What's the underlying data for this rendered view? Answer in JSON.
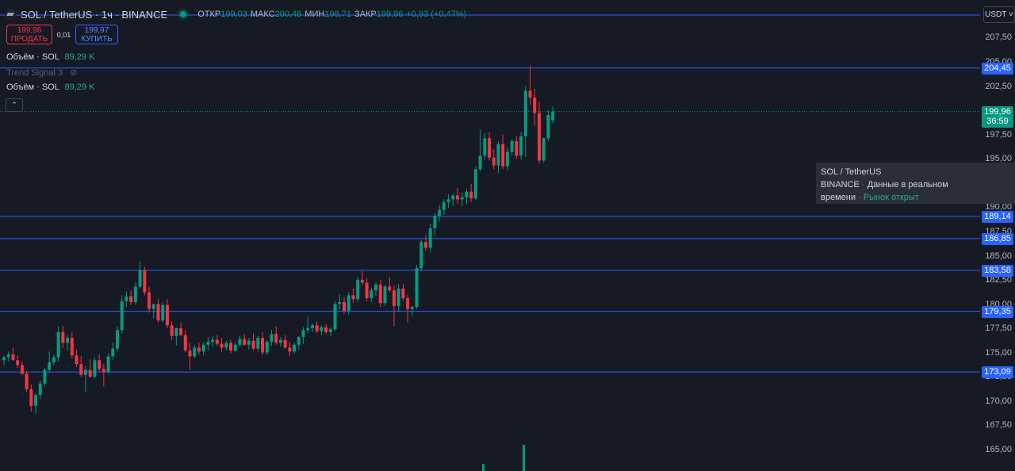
{
  "header": {
    "symbol": "SOL / TetherUS · 1ч · BINANCE",
    "open_label": "ОТКР",
    "open": "199,03",
    "high_label": "МАКС",
    "high": "200,48",
    "low_label": "МИН",
    "low": "198,71",
    "close_label": "ЗАКР",
    "close": "199,96",
    "change": "+0,93 (+0,47%)"
  },
  "trade": {
    "sell_price": "199,96",
    "sell_label": "ПРОДАТЬ",
    "spread": "0,01",
    "buy_price": "199,97",
    "buy_label": "КУПИТЬ"
  },
  "indicators": {
    "volume1_name": "Объём · SOL",
    "volume1_value": "89,29 K",
    "trend_name": "Trend Signal 3",
    "volume2_name": "Объём · SOL",
    "volume2_value": "89,29 K"
  },
  "currency": "USDT ˅",
  "price_ticks": [
    "207,50",
    "205,00",
    "202,50",
    "197,50",
    "195,00",
    "190,00",
    "187,50",
    "185,00",
    "182,50",
    "180,00",
    "177,50",
    "175,00",
    "172,50",
    "170,00",
    "167,50",
    "165,00"
  ],
  "price_ticks_values": [
    207.5,
    205,
    202.5,
    197.5,
    195,
    190,
    187.5,
    185,
    182.5,
    180,
    177.5,
    175,
    172.5,
    170,
    167.5,
    165
  ],
  "horizontal_lines": [
    {
      "label": "204,45",
      "value": 204.45
    },
    {
      "label": "189,14",
      "value": 189.14
    },
    {
      "label": "186,85",
      "value": 186.85
    },
    {
      "label": "183,58",
      "value": 183.58
    },
    {
      "label": "179,35",
      "value": 179.35
    },
    {
      "label": "173,09",
      "value": 173.09
    }
  ],
  "current_price": {
    "label": "199,96",
    "countdown": "36:59",
    "value": 199.96
  },
  "tooltip": {
    "title": "SOL / TetherUS",
    "exchange": "BINANCE",
    "desc": "Данные в реальном",
    "desc2": "времени",
    "market": "Рынок открыт"
  },
  "colors": {
    "up": "#089981",
    "down": "#f23645",
    "line": "#2962ff",
    "bg": "#161a25"
  },
  "chart_data": {
    "type": "candlestick",
    "ylim": [
      164,
      209
    ],
    "candles": [
      [
        174.3,
        174.8,
        173.8,
        174.6
      ],
      [
        174.6,
        175.2,
        174.2,
        174.9
      ],
      [
        174.9,
        175.6,
        174.4,
        174.3
      ],
      [
        174.3,
        174.8,
        173.5,
        173.8
      ],
      [
        173.8,
        174.2,
        172.8,
        172.9
      ],
      [
        172.9,
        173.2,
        171.0,
        171.3
      ],
      [
        171.3,
        171.8,
        169.0,
        169.6
      ],
      [
        169.6,
        170.9,
        168.8,
        170.7
      ],
      [
        170.7,
        172.2,
        170.3,
        171.9
      ],
      [
        171.9,
        173.5,
        171.6,
        173.3
      ],
      [
        173.3,
        175.2,
        173.0,
        174.1
      ],
      [
        174.1,
        174.9,
        173.8,
        174.6
      ],
      [
        174.6,
        177.8,
        174.2,
        177.2
      ],
      [
        177.2,
        177.8,
        175.6,
        176.1
      ],
      [
        176.1,
        176.9,
        175.3,
        176.6
      ],
      [
        176.6,
        177.2,
        174.5,
        174.8
      ],
      [
        174.8,
        175.4,
        173.6,
        173.9
      ],
      [
        173.9,
        174.7,
        172.6,
        172.8
      ],
      [
        172.8,
        173.7,
        171.0,
        173.3
      ],
      [
        173.3,
        174.4,
        172.5,
        172.6
      ],
      [
        172.6,
        174.6,
        172.4,
        174.3
      ],
      [
        174.3,
        174.9,
        173.1,
        173.4
      ],
      [
        173.4,
        173.9,
        171.6,
        173.1
      ],
      [
        173.1,
        175.0,
        172.9,
        174.7
      ],
      [
        174.7,
        176.1,
        174.3,
        175.5
      ],
      [
        175.5,
        177.8,
        175.2,
        177.4
      ],
      [
        177.4,
        181.0,
        177.1,
        180.4
      ],
      [
        180.4,
        181.4,
        179.8,
        180.9
      ],
      [
        180.9,
        181.5,
        180.0,
        180.3
      ],
      [
        180.3,
        182.3,
        180.0,
        181.9
      ],
      [
        181.9,
        184.5,
        181.7,
        183.6
      ],
      [
        183.6,
        183.9,
        181.0,
        181.3
      ],
      [
        181.3,
        181.9,
        179.2,
        179.6
      ],
      [
        179.6,
        180.1,
        178.6,
        180.1
      ],
      [
        180.1,
        180.6,
        178.2,
        178.4
      ],
      [
        178.4,
        180.3,
        178.2,
        180.0
      ],
      [
        180.0,
        180.6,
        177.6,
        177.9
      ],
      [
        177.9,
        178.3,
        176.4,
        176.8
      ],
      [
        176.8,
        177.7,
        175.8,
        177.6
      ],
      [
        177.6,
        178.2,
        176.8,
        176.9
      ],
      [
        176.9,
        177.4,
        175.1,
        175.3
      ],
      [
        175.3,
        176.1,
        173.3,
        174.7
      ],
      [
        174.7,
        175.9,
        174.5,
        175.6
      ],
      [
        175.6,
        176.1,
        174.9,
        175.2
      ],
      [
        175.2,
        176.2,
        174.8,
        175.9
      ],
      [
        175.9,
        176.7,
        175.3,
        176.2
      ],
      [
        176.2,
        176.8,
        175.7,
        176.4
      ],
      [
        176.4,
        176.9,
        175.8,
        176.0
      ],
      [
        176.0,
        176.6,
        175.2,
        175.6
      ],
      [
        175.6,
        176.3,
        175.3,
        176.1
      ],
      [
        176.1,
        176.4,
        175.0,
        175.3
      ],
      [
        175.3,
        176.2,
        175.1,
        175.9
      ],
      [
        175.9,
        176.8,
        175.7,
        176.5
      ],
      [
        176.5,
        177.0,
        175.8,
        175.9
      ],
      [
        175.9,
        176.6,
        175.4,
        176.3
      ],
      [
        176.3,
        177.1,
        175.3,
        175.5
      ],
      [
        175.5,
        176.8,
        175.2,
        176.6
      ],
      [
        176.6,
        177.2,
        174.8,
        175.1
      ],
      [
        175.1,
        176.4,
        174.8,
        176.2
      ],
      [
        176.2,
        177.4,
        175.8,
        177.0
      ],
      [
        177.0,
        177.8,
        175.9,
        176.1
      ],
      [
        176.1,
        176.7,
        175.7,
        176.4
      ],
      [
        176.4,
        176.9,
        175.5,
        175.6
      ],
      [
        175.6,
        176.2,
        174.7,
        175.2
      ],
      [
        175.2,
        176.1,
        174.9,
        175.9
      ],
      [
        175.9,
        176.8,
        175.4,
        176.7
      ],
      [
        176.7,
        177.7,
        176.0,
        177.4
      ],
      [
        177.4,
        178.8,
        177.1,
        177.6
      ],
      [
        177.6,
        178.1,
        177.2,
        177.9
      ],
      [
        177.9,
        178.3,
        177.1,
        177.3
      ],
      [
        177.3,
        177.9,
        176.9,
        177.7
      ],
      [
        177.7,
        178.0,
        177.0,
        177.2
      ],
      [
        177.2,
        177.7,
        176.8,
        177.5
      ],
      [
        177.5,
        180.4,
        177.3,
        180.1
      ],
      [
        180.1,
        181.1,
        179.5,
        180.3
      ],
      [
        180.3,
        180.8,
        179.1,
        179.4
      ],
      [
        179.4,
        181.3,
        179.0,
        181.0
      ],
      [
        181.0,
        181.7,
        180.2,
        180.6
      ],
      [
        180.6,
        182.9,
        180.3,
        182.6
      ],
      [
        182.6,
        183.5,
        182.0,
        182.3
      ],
      [
        182.3,
        182.8,
        180.4,
        180.7
      ],
      [
        180.7,
        181.8,
        180.3,
        181.5
      ],
      [
        181.5,
        182.4,
        180.9,
        182.1
      ],
      [
        182.1,
        182.6,
        179.8,
        180.2
      ],
      [
        180.2,
        182.1,
        179.9,
        181.9
      ],
      [
        181.9,
        182.9,
        181.3,
        181.5
      ],
      [
        181.5,
        182.0,
        177.8,
        179.9
      ],
      [
        179.9,
        182.2,
        179.3,
        181.7
      ],
      [
        181.7,
        182.2,
        180.4,
        180.7
      ],
      [
        180.7,
        181.1,
        178.2,
        179.6
      ],
      [
        179.6,
        179.9,
        178.8,
        179.8
      ],
      [
        179.8,
        184.1,
        179.6,
        183.8
      ],
      [
        183.8,
        186.7,
        183.5,
        186.5
      ],
      [
        186.5,
        187.2,
        185.6,
        185.9
      ],
      [
        185.9,
        188.4,
        185.4,
        187.9
      ],
      [
        187.9,
        189.5,
        187.2,
        189.2
      ],
      [
        189.2,
        190.3,
        188.6,
        189.8
      ],
      [
        189.8,
        190.9,
        189.3,
        190.6
      ],
      [
        190.6,
        191.4,
        190.0,
        190.9
      ],
      [
        190.9,
        191.5,
        190.2,
        191.3
      ],
      [
        191.3,
        192.1,
        190.4,
        190.9
      ],
      [
        190.9,
        191.6,
        190.2,
        191.1
      ],
      [
        191.1,
        192.0,
        190.4,
        191.7
      ],
      [
        191.7,
        192.5,
        190.6,
        191.0
      ],
      [
        191.0,
        194.3,
        190.8,
        194.0
      ],
      [
        194.0,
        198.1,
        193.8,
        195.4
      ],
      [
        195.4,
        197.7,
        195.0,
        197.2
      ],
      [
        197.2,
        197.8,
        194.9,
        195.2
      ],
      [
        195.2,
        196.1,
        194.0,
        194.4
      ],
      [
        194.4,
        196.9,
        193.6,
        196.6
      ],
      [
        196.6,
        197.6,
        194.0,
        194.3
      ],
      [
        194.3,
        196.3,
        193.9,
        195.8
      ],
      [
        195.8,
        197.1,
        195.4,
        196.9
      ],
      [
        196.9,
        197.4,
        195.1,
        195.4
      ],
      [
        195.4,
        197.8,
        195.0,
        197.4
      ],
      [
        197.4,
        202.6,
        195.3,
        202.1
      ],
      [
        202.1,
        204.7,
        200.6,
        201.4
      ],
      [
        201.4,
        202.3,
        198.5,
        199.8
      ],
      [
        199.8,
        201.0,
        194.6,
        194.9
      ],
      [
        194.9,
        197.3,
        194.7,
        197.2
      ],
      [
        197.2,
        200.1,
        196.9,
        199.6
      ],
      [
        199.03,
        200.48,
        198.71,
        199.96
      ]
    ]
  }
}
